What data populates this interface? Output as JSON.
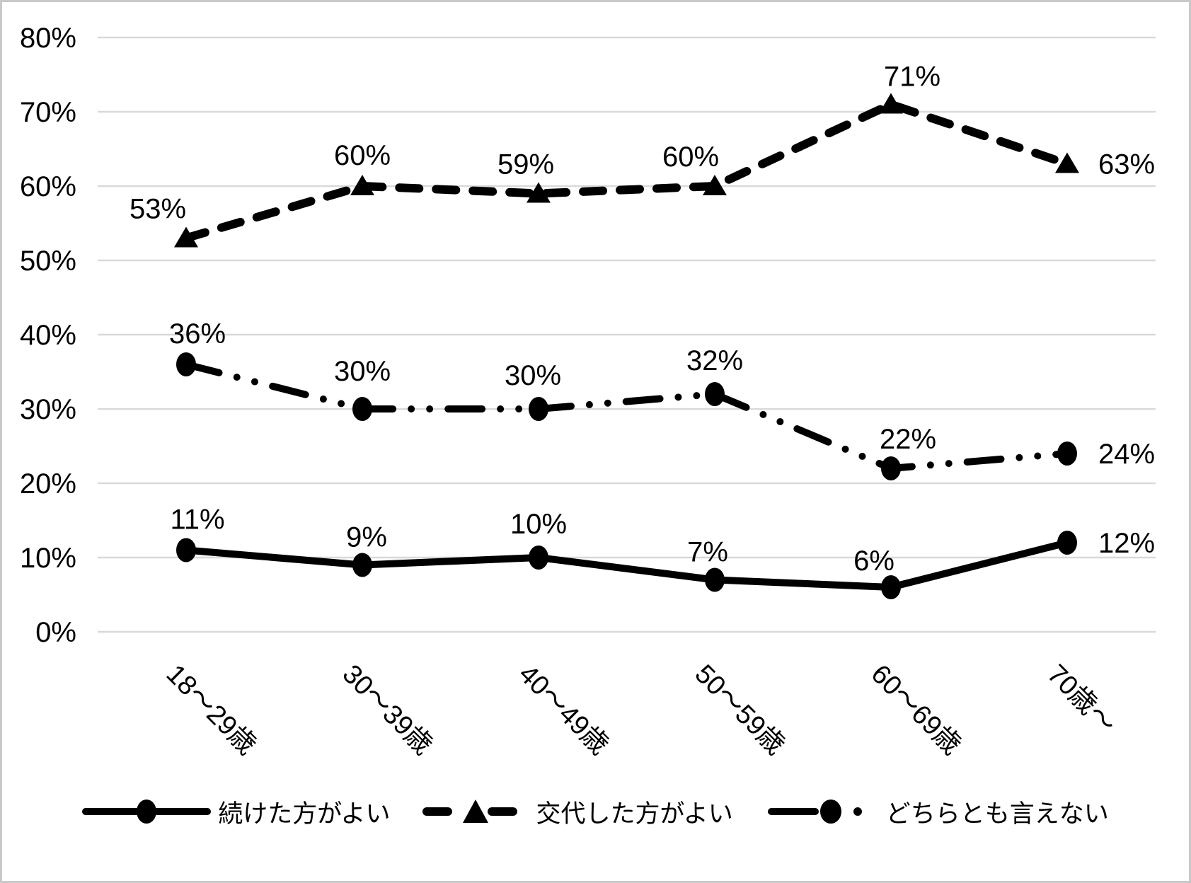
{
  "chart_data": {
    "type": "line",
    "title": "",
    "xlabel": "",
    "ylabel": "",
    "categories": [
      "18〜29歳",
      "30〜39歳",
      "40〜49歳",
      "50〜59歳",
      "60〜69歳",
      "70歳〜"
    ],
    "series": [
      {
        "name": "続けた方がよい",
        "marker": "circle",
        "line_style": "solid",
        "values": [
          11,
          9,
          10,
          7,
          6,
          12
        ],
        "data_labels": [
          "11%",
          "9%",
          "10%",
          "7%",
          "6%",
          "12%"
        ]
      },
      {
        "name": "交代した方がよい",
        "marker": "triangle",
        "line_style": "dashed",
        "values": [
          53,
          60,
          59,
          60,
          71,
          63
        ],
        "data_labels": [
          "53%",
          "60%",
          "59%",
          "60%",
          "71%",
          "63%"
        ]
      },
      {
        "name": "どちらとも言えない",
        "marker": "circle",
        "line_style": "long-dash-dot-dot",
        "values": [
          36,
          30,
          30,
          32,
          22,
          24
        ],
        "data_labels": [
          "36%",
          "30%",
          "30%",
          "32%",
          "22%",
          "24%"
        ]
      }
    ],
    "y_axis": {
      "min": 0,
      "max": 80,
      "step": 10,
      "tick_labels": [
        "0%",
        "10%",
        "20%",
        "30%",
        "40%",
        "50%",
        "60%",
        "70%",
        "80%"
      ]
    },
    "grid": true,
    "legend_position": "bottom",
    "colors": {
      "series": "#000000",
      "gridlines": "#d9d9d9",
      "background": "#ffffff",
      "frame_border": "#c9c9c9"
    }
  }
}
